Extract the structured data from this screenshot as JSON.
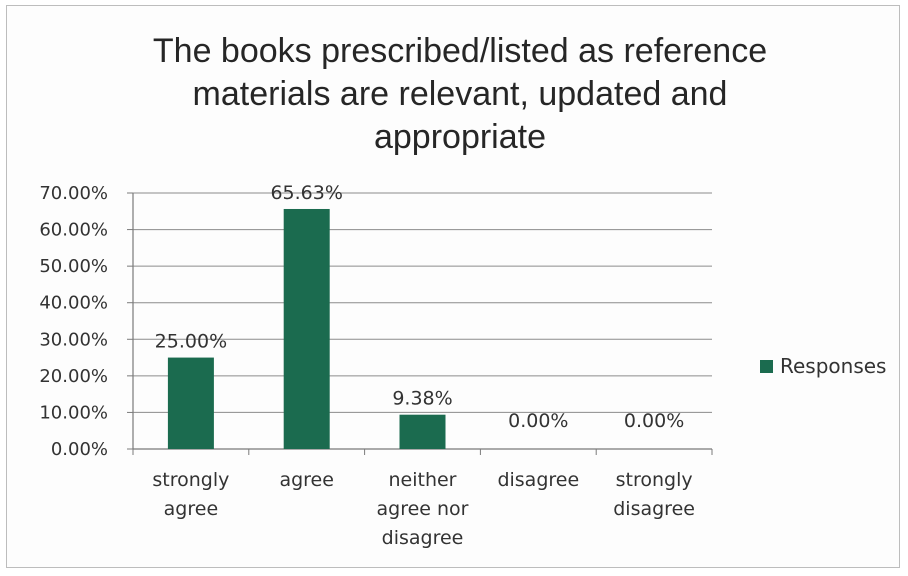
{
  "chart_data": {
    "type": "bar",
    "title": [
      "The books prescribed/listed as reference",
      "materials are relevant, updated and",
      "appropriate"
    ],
    "categories": [
      [
        "strongly",
        "agree"
      ],
      [
        "agree"
      ],
      [
        "neither",
        "agree nor",
        "disagree"
      ],
      [
        "disagree"
      ],
      [
        "strongly",
        "disagree"
      ]
    ],
    "series": [
      {
        "name": "Responses",
        "values": [
          25.0,
          65.63,
          9.38,
          0.0,
          0.0
        ],
        "labels": [
          "25.00%",
          "65.63%",
          "9.38%",
          "0.00%",
          "0.00%"
        ]
      }
    ],
    "ylim": [
      0,
      70
    ],
    "yticks": [
      "0.00%",
      "10.00%",
      "20.00%",
      "30.00%",
      "40.00%",
      "50.00%",
      "60.00%",
      "70.00%"
    ],
    "ytick_values": [
      0,
      10,
      20,
      30,
      40,
      50,
      60,
      70
    ],
    "grid": true,
    "legend": "right",
    "colors": {
      "bar": "#1b6b4f",
      "grid": "#8c8c8c",
      "axis": "#7a7a7a"
    }
  }
}
